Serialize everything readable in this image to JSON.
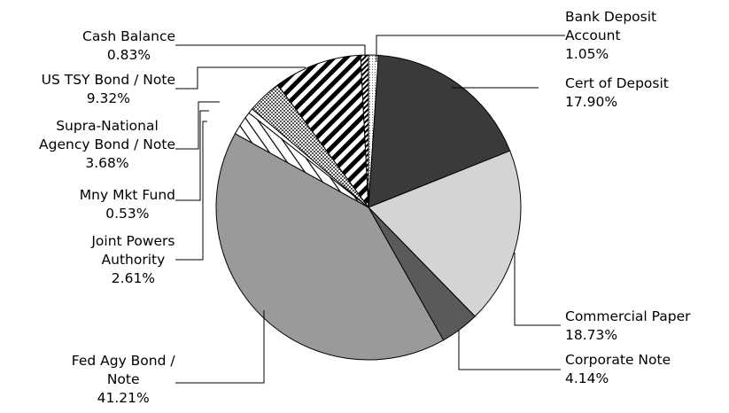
{
  "chart_data": {
    "type": "pie",
    "title": "",
    "slices": [
      {
        "key": "bank-deposit-account",
        "name_lines": [
          "Bank Deposit",
          "Account"
        ],
        "value": 1.05,
        "value_label": "1.05%",
        "fill": "dots-light",
        "anchor": "start"
      },
      {
        "key": "cert-of-deposit",
        "name_lines": [
          "Cert of Deposit"
        ],
        "value": 17.9,
        "value_label": "17.90%",
        "fill": "#3a3a3a",
        "anchor": "start"
      },
      {
        "key": "commercial-paper",
        "name_lines": [
          "Commercial Paper"
        ],
        "value": 18.73,
        "value_label": "18.73%",
        "fill": "#d4d4d4",
        "anchor": "start"
      },
      {
        "key": "corporate-note",
        "name_lines": [
          "Corporate Note"
        ],
        "value": 4.14,
        "value_label": "4.14%",
        "fill": "#5a5a5a",
        "anchor": "start"
      },
      {
        "key": "fed-agy-bond-note",
        "name_lines": [
          "Fed Agy Bond /",
          "Note"
        ],
        "value": 41.21,
        "value_label": "41.21%",
        "fill": "#9a9a9a",
        "anchor": "end"
      },
      {
        "key": "joint-powers-authority",
        "name_lines": [
          "Joint Powers",
          "Authority"
        ],
        "value": 2.61,
        "value_label": "2.61%",
        "fill": "hatch-light",
        "anchor": "end"
      },
      {
        "key": "mny-mkt-fund",
        "name_lines": [
          "Mny Mkt Fund"
        ],
        "value": 0.53,
        "value_label": "0.53%",
        "fill": "#ffffff",
        "anchor": "end"
      },
      {
        "key": "supra-national-agency-bond-note",
        "name_lines": [
          "Supra-National",
          "Agency Bond / Note"
        ],
        "value": 3.68,
        "value_label": "3.68%",
        "fill": "checker",
        "anchor": "end"
      },
      {
        "key": "us-tsy-bond-note",
        "name_lines": [
          "US TSY Bond / Note"
        ],
        "value": 9.32,
        "value_label": "9.32%",
        "fill": "stripe-bold",
        "anchor": "end"
      },
      {
        "key": "cash-balance",
        "name_lines": [
          "Cash Balance"
        ],
        "value": 0.83,
        "value_label": "0.83%",
        "fill": "stripe-fine",
        "anchor": "end"
      }
    ]
  }
}
